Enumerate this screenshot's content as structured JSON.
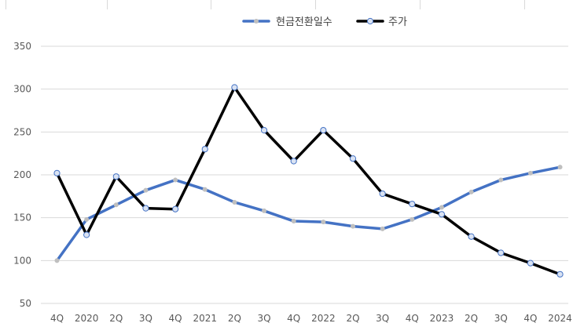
{
  "chart_data": {
    "type": "line",
    "categories": [
      "4Q",
      "2020",
      "2Q",
      "3Q",
      "4Q",
      "2021",
      "2Q",
      "3Q",
      "4Q",
      "2022",
      "2Q",
      "3Q",
      "4Q",
      "2023",
      "2Q",
      "3Q",
      "4Q",
      "2024"
    ],
    "series": [
      {
        "name": "현금전환일수",
        "color": "#4472C4",
        "marker_color": "#bfbfbf",
        "values": [
          100,
          148,
          165,
          182,
          194,
          183,
          168,
          158,
          146,
          145,
          140,
          137,
          148,
          162,
          180,
          194,
          202,
          209
        ]
      },
      {
        "name": "주가",
        "color": "#000000",
        "marker_color": "#dae3f3",
        "values": [
          202,
          130,
          198,
          161,
          160,
          230,
          302,
          252,
          216,
          252,
          219,
          178,
          166,
          154,
          128,
          109,
          97,
          84
        ]
      }
    ],
    "ylim": [
      50,
      350
    ],
    "yticks": [
      50,
      100,
      150,
      200,
      250,
      300,
      350
    ],
    "grid": true,
    "legend": "top-center"
  }
}
